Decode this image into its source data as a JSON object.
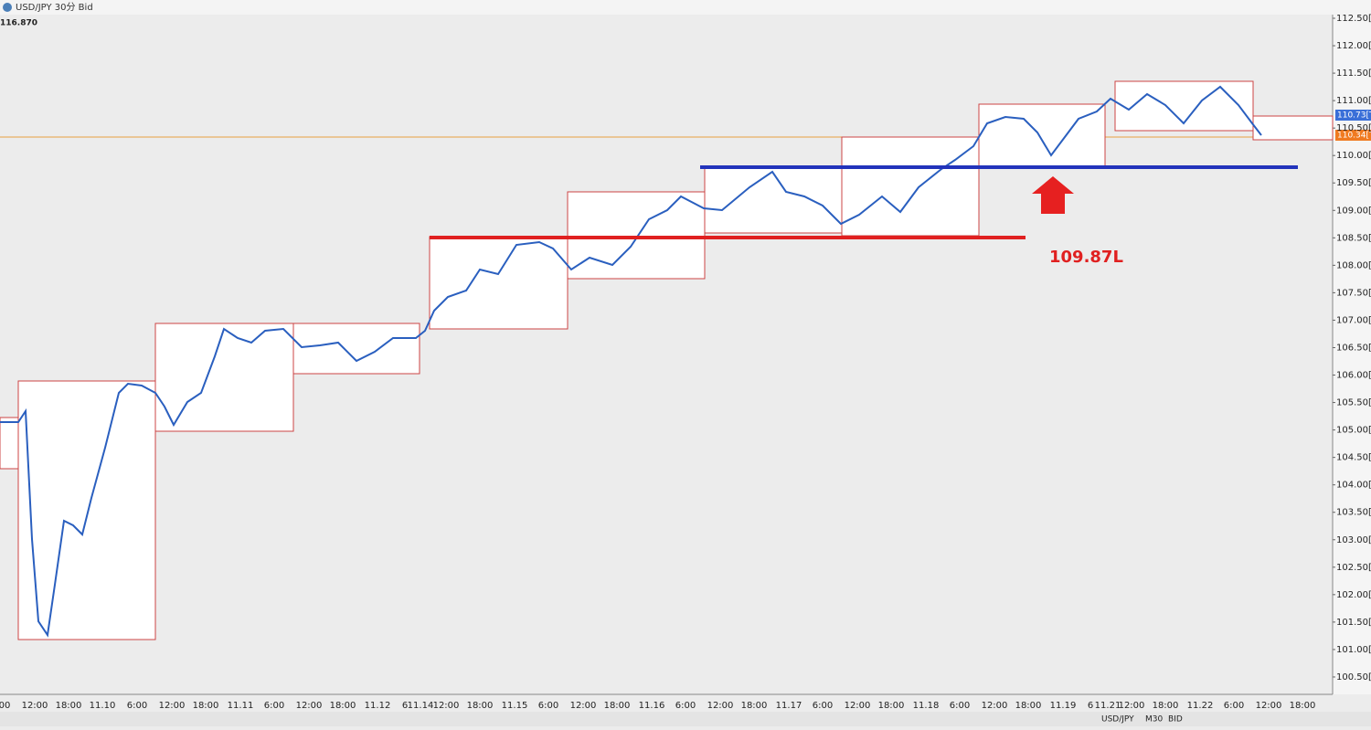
{
  "window": {
    "title": "USD/JPY 30分 Bid",
    "corner_price": "116.870"
  },
  "y_axis": [
    "112.50[0",
    "112.00[0",
    "111.50[0",
    "111.00[0",
    "110.50[0",
    "110.00[0",
    "109.50[0",
    "109.00[0",
    "108.50[0",
    "108.00[0",
    "107.50[0",
    "107.00[0",
    "106.50[0",
    "106.00[0",
    "105.50[0",
    "105.00[0",
    "104.50[0",
    "104.00[0",
    "103.50[0",
    "103.00[0",
    "102.50[0",
    "102.00[0",
    "101.50[0",
    "101.00[0",
    "100.50[0"
  ],
  "x_axis": [
    "00",
    "12:00",
    "18:00",
    "11.10",
    "6:00",
    "12:00",
    "18:00",
    "11.11",
    "6:00",
    "12:00",
    "18:00",
    "11.12",
    "6",
    "11.14",
    "12:00",
    "18:00",
    "11.15",
    "6:00",
    "12:00",
    "18:00",
    "11.16",
    "6:00",
    "12:00",
    "18:00",
    "11.17",
    "6:00",
    "12:00",
    "18:00",
    "11.18",
    "6:00",
    "12:00",
    "18:00",
    "11.19",
    "6",
    "11.21",
    "12:00",
    "18:00",
    "11.22",
    "6:00",
    "12:00",
    "18:00"
  ],
  "price_tags": {
    "ask": "110.73[T]",
    "bid": "110.34[T]"
  },
  "annotation": "109.87L",
  "status_bar": {
    "symbol": "USD/JPY",
    "timeframe": "M30",
    "side": "BID"
  }
}
